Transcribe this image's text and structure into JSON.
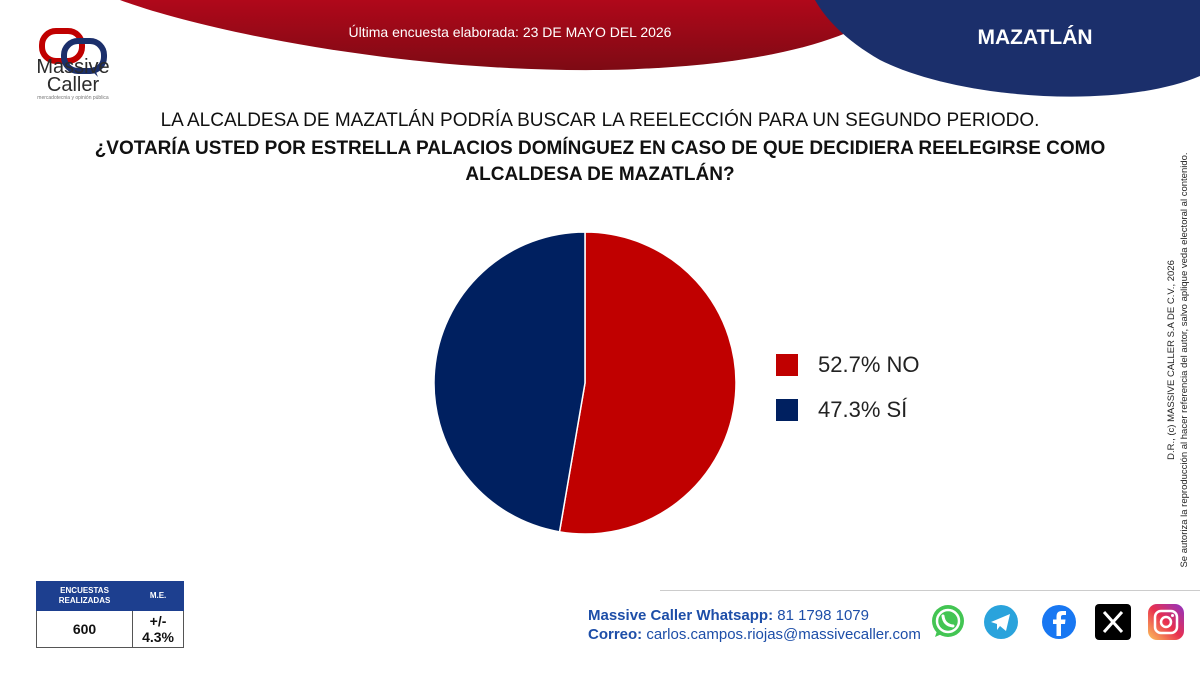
{
  "header": {
    "survey_date": "Última encuesta elaborada: 23 DE MAYO DEL 2026",
    "city": "MAZATLÁN"
  },
  "logo": {
    "name_line1": "Massive",
    "name_line2": "Caller",
    "tagline": "mercadotecnia y opinión pública"
  },
  "question": {
    "line1": "LA ALCALDESA DE MAZATLÁN PODRÍA BUSCAR LA REELECCIÓN PARA UN SEGUNDO PERIODO.",
    "line2": "¿VOTARÍA USTED POR ESTRELLA PALACIOS DOMÍNGUEZ EN CASO DE QUE DECIDIERA REELEGIRSE COMO",
    "line3": "ALCALDESA DE MAZATLÁN?"
  },
  "chart_data": {
    "type": "pie",
    "categories": [
      "NO",
      "SÍ"
    ],
    "values": [
      52.7,
      47.3
    ],
    "labels": [
      "52.7% NO",
      "47.3% SÍ"
    ],
    "colors": [
      "#c00000",
      "#002060"
    ],
    "legend_position": "right"
  },
  "copyright": {
    "line1": "D.R., (c) MASSIVE CALLER S.A DE C.V., 2026",
    "line2": "Se autoriza la reproducción al hacer referencia del autor, salvo aplique veda electoral al contenido."
  },
  "stats": {
    "col1_header": "ENCUESTAS REALIZADAS",
    "col2_header": "M.E.",
    "surveys": "600",
    "margin": "+/- 4.3%"
  },
  "contact": {
    "whatsapp_label": "Massive Caller Whatsapp:",
    "whatsapp_number": "81 1798 1079",
    "email_label": "Correo:",
    "email": "carlos.campos.riojas@massivecaller.com"
  },
  "social": [
    "whatsapp-icon",
    "telegram-icon",
    "facebook-icon",
    "x-icon",
    "instagram-icon"
  ]
}
